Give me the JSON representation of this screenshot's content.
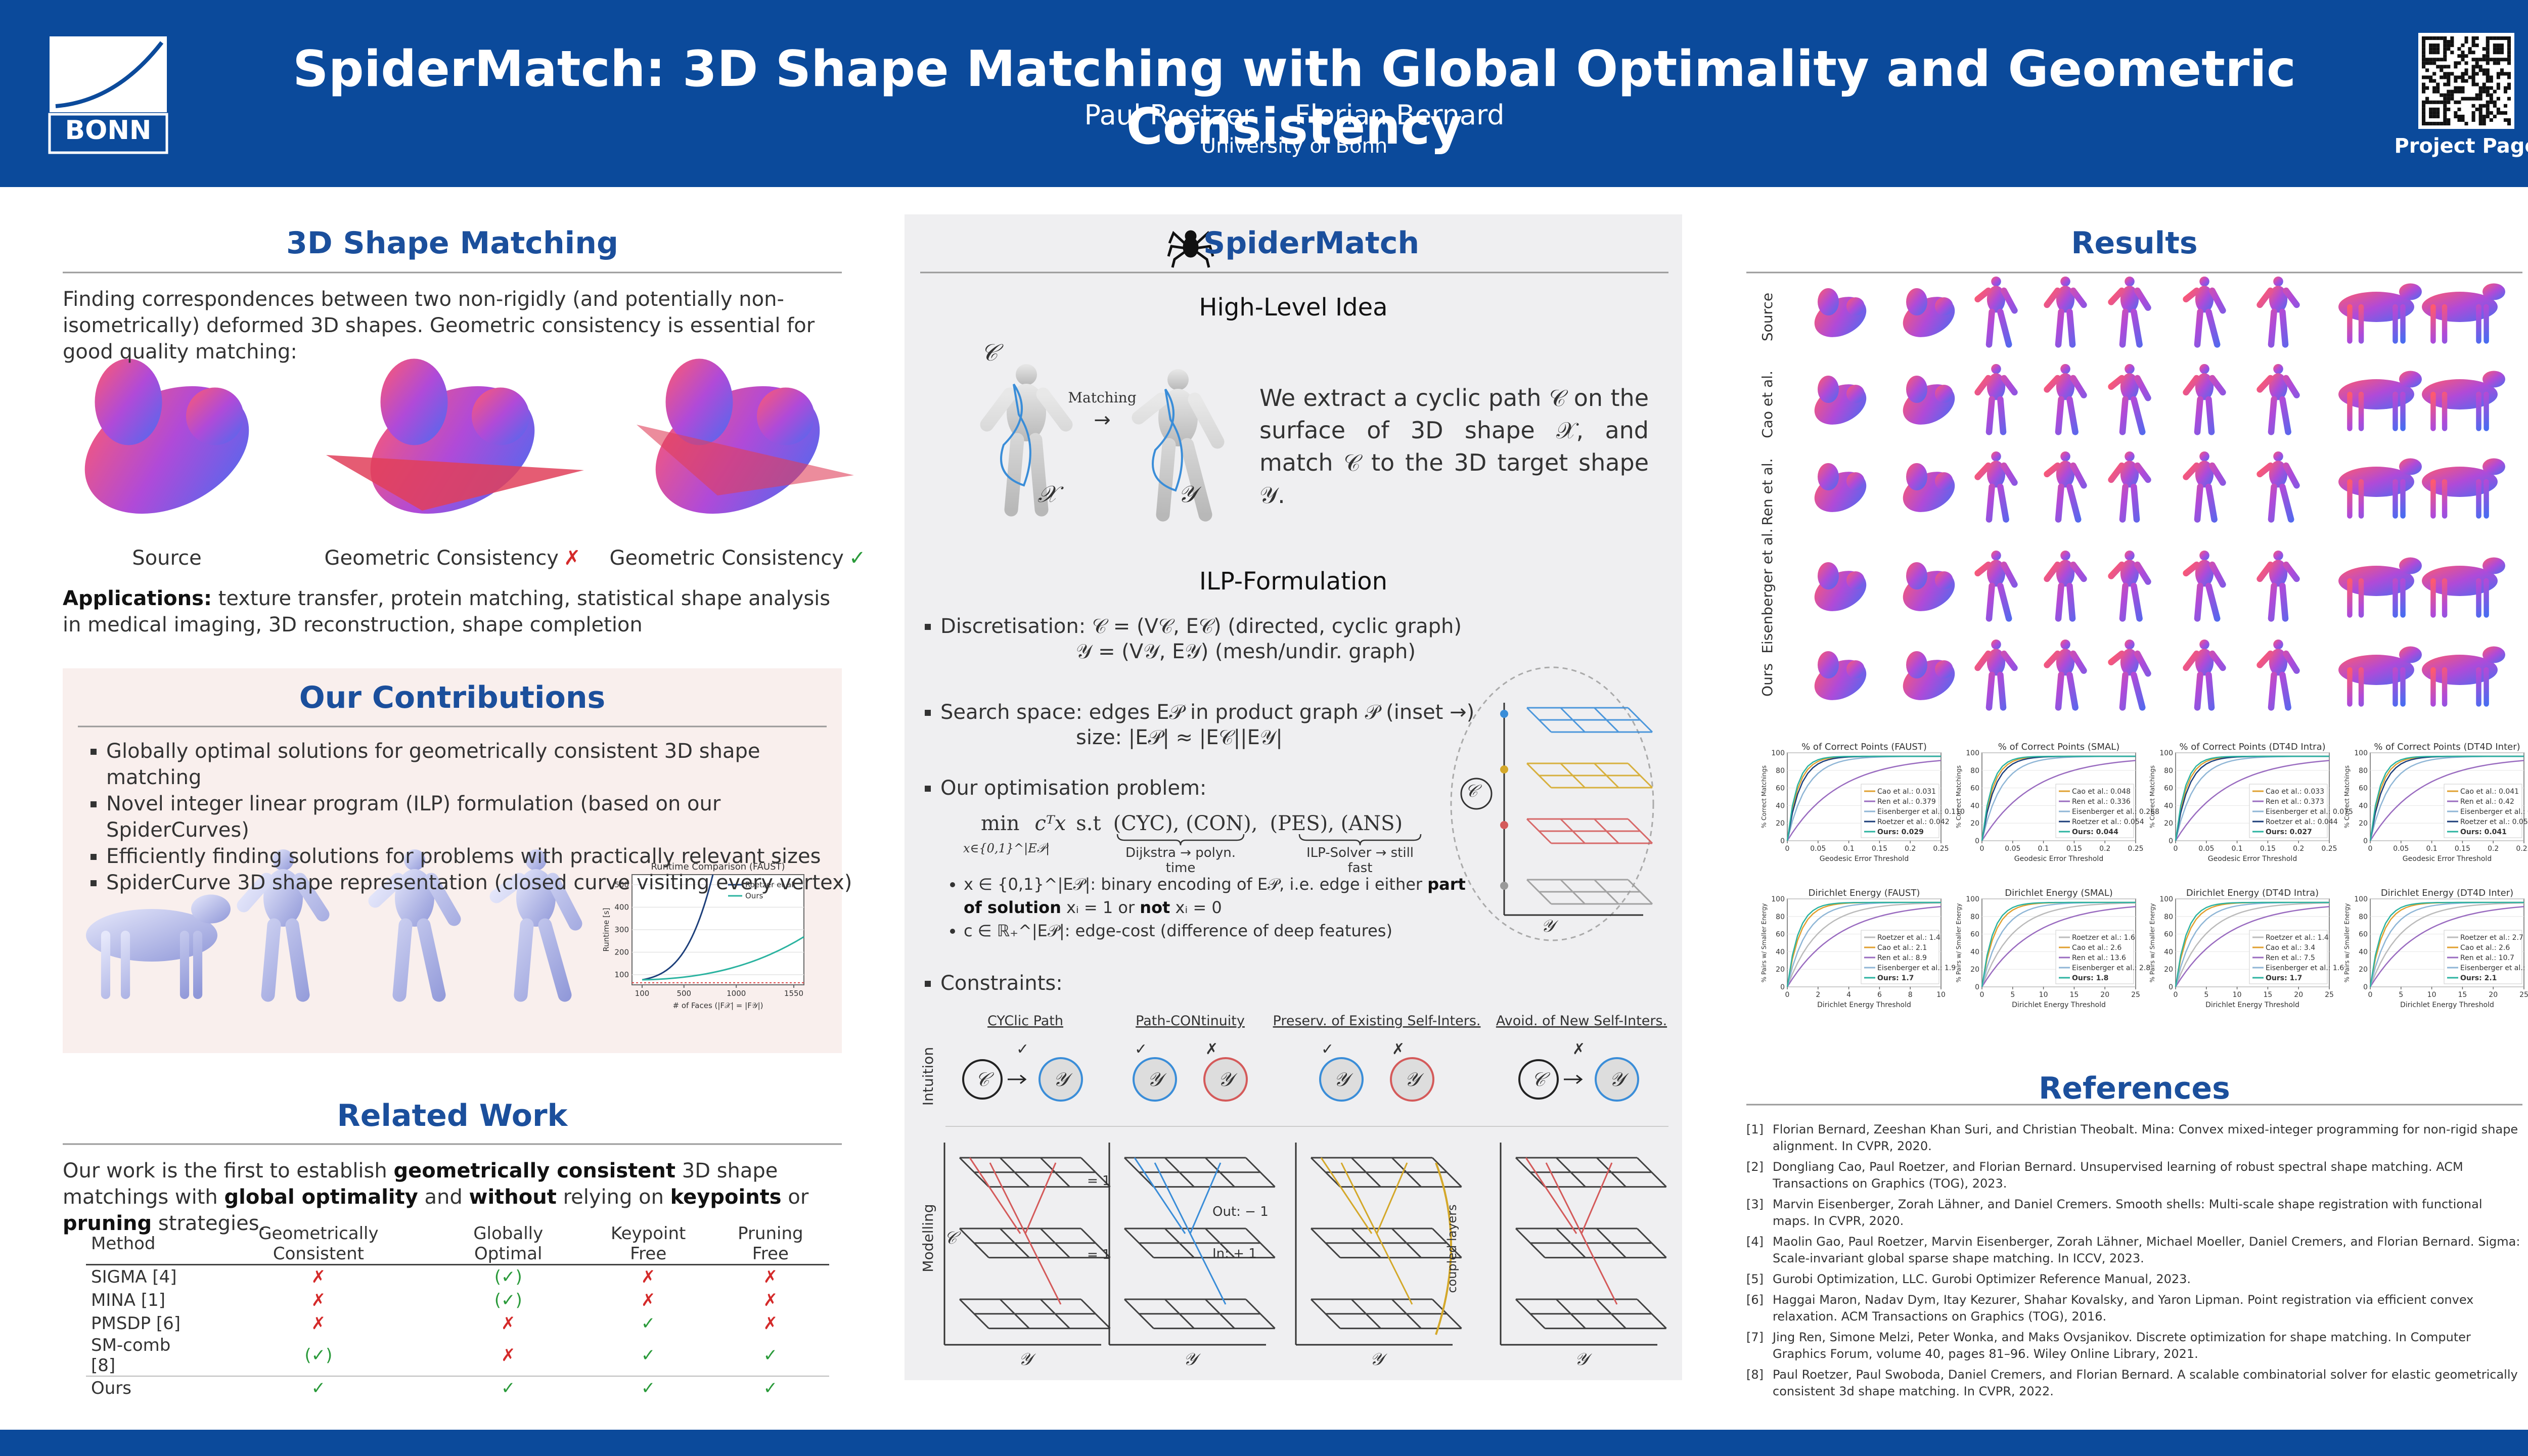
{
  "header": {
    "logo": "BONN",
    "title": "SpiderMatch: 3D Shape Matching with Global Optimality and Geometric Consistency",
    "authors": [
      "Paul Roetzer",
      "Florian Bernard"
    ],
    "affiliation": "University of Bonn",
    "project_link": "Project Page"
  },
  "shape_matching": {
    "heading": "3D Shape Matching",
    "intro": "Finding correspondences between two non-rigidly (and potentially non-isometrically) deformed 3D shapes. Geometric consistency is essential for good quality matching:",
    "figure_labels": [
      {
        "text": "Source"
      },
      {
        "text": "Geometric Consistency",
        "mark": "✗"
      },
      {
        "text": "Geometric Consistency",
        "mark": "✓"
      }
    ],
    "applications": [
      {
        "strong": "Applications:"
      },
      " texture transfer, protein matching, statistical shape analysis in medical imaging, 3D reconstruction, shape completion"
    ]
  },
  "contributions": {
    "heading": "Our Contributions",
    "bullets": [
      "Globally optimal solutions for geometrically consistent 3D shape matching",
      "Novel integer linear program (ILP) formulation (based on our SpiderCurves)",
      "Efficiently finding solutions for problems with practically relevant sizes",
      "SpiderCurve 3D shape representation (closed curve visiting every vertex)"
    ],
    "runtime_chart": {
      "title": "Runtime Comparison (FAUST)",
      "legend": [
        "Roetzer et al.",
        "Ours"
      ],
      "x_label": "# of Faces (|F𝒳| = |F𝒴|)",
      "y_label": "Runtime [s]",
      "xticks": [
        100,
        500,
        1000,
        1550
      ],
      "yticks": [
        100,
        200,
        300,
        400,
        500
      ]
    }
  },
  "related_work": {
    "heading": "Related Work",
    "paragraph": [
      "Our work is the first to establish ",
      {
        "strong": "geometrically consistent"
      },
      " 3D shape matchings with ",
      {
        "strong": "global optimality"
      },
      " and ",
      {
        "strong": "without"
      },
      " relying on ",
      {
        "strong": "keypoints"
      },
      " or ",
      {
        "strong": "pruning"
      },
      " strategies."
    ],
    "table": {
      "header": [
        "Method",
        "Geometrically Consistent",
        "Globally Optimal",
        "Keypoint Free",
        "Pruning Free"
      ],
      "rows": [
        [
          "SIGMA [4]",
          "✗",
          "(✓)",
          "✗",
          "✗"
        ],
        [
          "MINA [1]",
          "✗",
          "(✓)",
          "✗",
          "✗"
        ],
        [
          "PMSDP [6]",
          "✗",
          "✗",
          "✓",
          "✗"
        ],
        [
          "SM-comb [8]",
          "(✓)",
          "✗",
          "✓",
          "✓"
        ],
        [
          "Ours",
          "✓",
          "✓",
          "✓",
          "✓"
        ]
      ]
    }
  },
  "spidermatch": {
    "heading": "SpiderMatch",
    "idea_heading": "High-Level Idea",
    "idea_figure": {
      "path": "𝒞",
      "source_shape": "𝒳",
      "target_shape": "𝒴",
      "arrow_label": "Matching",
      "arrow": "→"
    },
    "idea_text": "We extract a cyclic path 𝒞 on the surface of 3D shape 𝒳, and match 𝒞 to the 3D target shape 𝒴.",
    "ilp_heading": "ILP-Formulation",
    "discretisation": [
      "Discretisation: 𝒞 = (V𝒞, E𝒞) (directed, cyclic graph)",
      "𝒴 = (V𝒴, E𝒴) (mesh/undir. graph)"
    ],
    "search_space": [
      "Search space: edges E𝒫 in product graph 𝒫 (inset →)",
      "size: |E𝒫| ≈ |E𝒞||E𝒴|"
    ],
    "optimisation": {
      "label": "Our optimisation problem:",
      "objective": "min",
      "objective_sub": "x∈{0,1}^|E𝒫|",
      "cost": "cᵀx",
      "st": "s.t",
      "easy_constraints": "(CYC), (CON),",
      "easy_note": "Dijkstra → polyn. time",
      "hard_constraints": "(PES), (ANS)",
      "hard_note": "ILP-Solver → still fast"
    },
    "sub_bullets": [
      [
        "x ∈ {0,1}^|E𝒫|: binary encoding of E𝒫, i.e. edge i either ",
        {
          "strong": "part of solution"
        },
        " xᵢ = 1 or ",
        {
          "strong": "not"
        },
        " xᵢ = 0"
      ],
      [
        "c ∈ ℝ₊^|E𝒫|: edge-cost (difference of deep features)"
      ]
    ],
    "inset": {
      "path": "𝒞",
      "shape": "𝒴"
    },
    "constraints": {
      "label": "Constraints:",
      "titles": [
        "CYClic Path",
        "Path-CONtinuity",
        "Preserv. of Existing Self-Inters.",
        "Avoid. of New Self-Inters."
      ],
      "row_labels": [
        "Intuition",
        "Modelling"
      ],
      "intuition_marks": [
        [
          "✓"
        ],
        [
          "✓",
          "✗"
        ],
        [
          "✓",
          "✗"
        ],
        [
          "✗"
        ]
      ],
      "annotations": {
        "cyc_top": "= 1",
        "cyc_bottom": "= 1",
        "out": "Out: − 1",
        "in": "In: + 1",
        "coupled": "coupled layers"
      },
      "axis_path": "𝒞",
      "axis_shape": "𝒴"
    }
  },
  "results": {
    "heading": "Results",
    "row_labels": [
      "Source",
      "Cao et al.",
      "Ren et al.",
      "Eisenberger et al.",
      "Ours"
    ],
    "pck_plots": {
      "y_label": "% Correct Matchings",
      "x_label": "Geodesic Error Threshold",
      "yticks": [
        0,
        20,
        40,
        60,
        80,
        100
      ],
      "xticks": [
        0,
        0.05,
        0.1,
        0.15,
        0.2,
        0.25
      ],
      "plots": [
        {
          "title": "% of Correct Points (FAUST)",
          "legend": [
            "Cao et al.: 0.031",
            "Ren et al.: 0.379",
            "Eisenberger et al.: 0.110",
            "Roetzer et al.: 0.042",
            "Ours: 0.029"
          ]
        },
        {
          "title": "% of Correct Points (SMAL)",
          "legend": [
            "Cao et al.: 0.048",
            "Ren et al.: 0.336",
            "Eisenberger et al.: 0.268",
            "Roetzer et al.: 0.054",
            "Ours: 0.044"
          ]
        },
        {
          "title": "% of Correct Points (DT4D Intra)",
          "legend": [
            "Cao et al.: 0.033",
            "Ren et al.: 0.373",
            "Eisenberger et al.: 0.075",
            "Roetzer et al.: 0.044",
            "Ours: 0.027"
          ]
        },
        {
          "title": "% of Correct Points (DT4D Inter)",
          "legend": [
            "Cao et al.: 0.041",
            "Ren et al.: 0.42",
            "Eisenberger et al.: 0.17",
            "Roetzer et al.: 0.055",
            "Ours: 0.041"
          ]
        }
      ]
    },
    "energy_plots": {
      "y_label": "% Pairs w/ Smaller Energy",
      "x_label": "Dirichlet Energy Threshold",
      "yticks": [
        0,
        20,
        40,
        60,
        80,
        100
      ],
      "plots": [
        {
          "title": "Dirichlet Energy (FAUST)",
          "xticks": [
            0,
            2,
            4,
            6,
            8,
            10
          ],
          "legend": [
            "Roetzer et al.: 1.4",
            "Cao et al.: 2.1",
            "Ren et al.: 8.9",
            "Eisenberger et al.: 1.9",
            "Ours: 1.7"
          ]
        },
        {
          "title": "Dirichlet Energy (SMAL)",
          "xticks": [
            0,
            5,
            10,
            15,
            20,
            25
          ],
          "legend": [
            "Roetzer et al.: 1.6",
            "Cao et al.: 2.6",
            "Ren et al.: 13.6",
            "Eisenberger et al.: 2.8",
            "Ours: 1.8"
          ]
        },
        {
          "title": "Dirichlet Energy (DT4D Intra)",
          "xticks": [
            0,
            5,
            10,
            15,
            20,
            25
          ],
          "legend": [
            "Roetzer et al.: 1.4",
            "Cao et al.: 3.4",
            "Ren et al.: 7.5",
            "Eisenberger et al.: 1.6",
            "Ours: 1.7"
          ]
        },
        {
          "title": "Dirichlet Energy (DT4D Inter)",
          "xticks": [
            0,
            5,
            10,
            15,
            20,
            25
          ],
          "legend": [
            "Roetzer et al.: 2.7",
            "Cao et al.: 2.6",
            "Ren et al.: 10.7",
            "Eisenberger et al.: 2.3",
            "Ours: 2.1"
          ]
        }
      ]
    }
  },
  "references": {
    "heading": "References",
    "items": [
      {
        "number": "[1]",
        "text": "Florian Bernard, Zeeshan Khan Suri, and Christian Theobalt. Mina: Convex mixed-integer programming for non-rigid shape alignment. In CVPR, 2020."
      },
      {
        "number": "[2]",
        "text": "Dongliang Cao, Paul Roetzer, and Florian Bernard. Unsupervised learning of robust spectral shape matching. ACM Transactions on Graphics (TOG), 2023."
      },
      {
        "number": "[3]",
        "text": "Marvin Eisenberger, Zorah Lähner, and Daniel Cremers. Smooth shells: Multi-scale shape registration with functional maps. In CVPR, 2020."
      },
      {
        "number": "[4]",
        "text": "Maolin Gao, Paul Roetzer, Marvin Eisenberger, Zorah Lähner, Michael Moeller, Daniel Cremers, and Florian Bernard. Sigma: Scale-invariant global sparse shape matching. In ICCV, 2023."
      },
      {
        "number": "[5]",
        "text": "Gurobi Optimization, LLC. Gurobi Optimizer Reference Manual, 2023."
      },
      {
        "number": "[6]",
        "text": "Haggai Maron, Nadav Dym, Itay Kezurer, Shahar Kovalsky, and Yaron Lipman. Point registration via efficient convex relaxation. ACM Transactions on Graphics (TOG), 2016."
      },
      {
        "number": "[7]",
        "text": "Jing Ren, Simone Melzi, Peter Wonka, and Maks Ovsjanikov. Discrete optimization for shape matching. In Computer Graphics Forum, volume 40, pages 81–96. Wiley Online Library, 2021."
      },
      {
        "number": "[8]",
        "text": "Paul Roetzer, Paul Swoboda, Daniel Cremers, and Florian Bernard. A scalable combinatorial solver for elastic geometrically consistent 3d shape matching. In CVPR, 2022."
      }
    ]
  }
}
